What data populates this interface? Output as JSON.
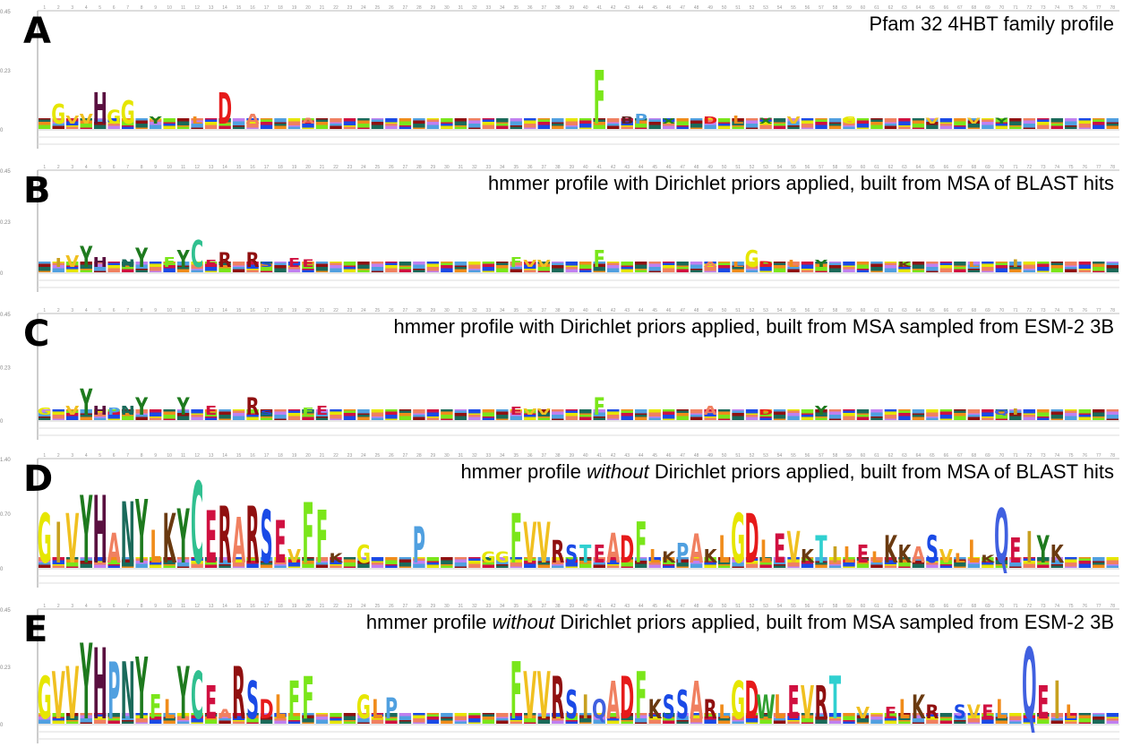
{
  "panels": [
    {
      "letter": "A",
      "title": "Pfam 32 4HBT family profile",
      "title_pre": "",
      "title_em": "",
      "title_post": "",
      "yticks": [
        "0.45",
        "0.23",
        "0"
      ],
      "logo": [
        [
          2,
          "G",
          0.2
        ],
        [
          3,
          "V",
          0.08
        ],
        [
          4,
          "V",
          0.1
        ],
        [
          5,
          "H",
          0.32
        ],
        [
          6,
          "G",
          0.14
        ],
        [
          7,
          "G",
          0.24
        ],
        [
          9,
          "Y",
          0.07
        ],
        [
          12,
          "L",
          0.07
        ],
        [
          14,
          "D",
          0.32
        ],
        [
          16,
          "A",
          0.1
        ],
        [
          20,
          "A",
          0.06
        ],
        [
          41,
          "F",
          0.55
        ],
        [
          43,
          "B",
          0.07
        ],
        [
          44,
          "P",
          0.1
        ],
        [
          46,
          "X",
          0.05
        ],
        [
          49,
          "D",
          0.07
        ],
        [
          51,
          "L",
          0.08
        ],
        [
          53,
          "X",
          0.06
        ],
        [
          55,
          "V",
          0.07
        ],
        [
          59,
          "G",
          0.07
        ],
        [
          65,
          "V",
          0.06
        ],
        [
          68,
          "V",
          0.06
        ],
        [
          70,
          "Y",
          0.06
        ]
      ]
    },
    {
      "letter": "B",
      "title": "",
      "title_pre": "",
      "title_em": "",
      "title_post": "",
      "title_full": "hmmer profile with Dirichlet priors applied, built from MSA of BLAST hits",
      "yticks": [
        "0.45",
        "0.23",
        "0"
      ],
      "logo": [
        [
          2,
          "I",
          0.1
        ],
        [
          3,
          "V",
          0.14
        ],
        [
          4,
          "Y",
          0.25
        ],
        [
          5,
          "H",
          0.12
        ],
        [
          7,
          "N",
          0.09
        ],
        [
          8,
          "Y",
          0.23
        ],
        [
          10,
          "F",
          0.12
        ],
        [
          11,
          "Y",
          0.2
        ],
        [
          12,
          "C",
          0.32
        ],
        [
          13,
          "E",
          0.08
        ],
        [
          14,
          "R",
          0.17
        ],
        [
          16,
          "R",
          0.17
        ],
        [
          17,
          "S",
          0.06
        ],
        [
          19,
          "E",
          0.1
        ],
        [
          20,
          "E",
          0.09
        ],
        [
          35,
          "F",
          0.12
        ],
        [
          36,
          "V",
          0.08
        ],
        [
          37,
          "V",
          0.08
        ],
        [
          41,
          "F",
          0.2
        ],
        [
          49,
          "A",
          0.06
        ],
        [
          51,
          "L",
          0.06
        ],
        [
          52,
          "G",
          0.2
        ],
        [
          53,
          "D",
          0.07
        ],
        [
          55,
          "L",
          0.08
        ],
        [
          57,
          "Y",
          0.08
        ],
        [
          63,
          "K",
          0.06
        ],
        [
          68,
          "L",
          0.06
        ],
        [
          71,
          "I",
          0.09
        ]
      ]
    },
    {
      "letter": "C",
      "title_full": "hmmer profile with Dirichlet priors applied, built from MSA sampled from ESM-2 3B",
      "yticks": [
        "0.45",
        "0.23",
        "0"
      ],
      "logo": [
        [
          1,
          "G",
          0.08
        ],
        [
          3,
          "V",
          0.1
        ],
        [
          4,
          "Y",
          0.3
        ],
        [
          5,
          "H",
          0.1
        ],
        [
          6,
          "P",
          0.08
        ],
        [
          7,
          "N",
          0.1
        ],
        [
          8,
          "Y",
          0.2
        ],
        [
          11,
          "Y",
          0.2
        ],
        [
          13,
          "E",
          0.1
        ],
        [
          16,
          "R",
          0.2
        ],
        [
          17,
          "S",
          0.05
        ],
        [
          20,
          "F",
          0.08
        ],
        [
          21,
          "E",
          0.1
        ],
        [
          35,
          "E",
          0.09
        ],
        [
          36,
          "V",
          0.07
        ],
        [
          37,
          "V",
          0.07
        ],
        [
          41,
          "F",
          0.2
        ],
        [
          49,
          "A",
          0.1
        ],
        [
          53,
          "D",
          0.06
        ],
        [
          57,
          "Y",
          0.1
        ],
        [
          70,
          "Q",
          0.06
        ],
        [
          71,
          "I",
          0.07
        ]
      ]
    },
    {
      "letter": "D",
      "title_pre": "hmmer profile ",
      "title_em": "without",
      "title_post": " Dirichlet priors applied, built from MSA of BLAST hits",
      "yticks": [
        "1.40",
        "0.70",
        "0"
      ],
      "logo": [
        [
          1,
          "G",
          0.55
        ],
        [
          2,
          "I",
          0.45
        ],
        [
          3,
          "V",
          0.55
        ],
        [
          4,
          "Y",
          0.75
        ],
        [
          5,
          "H",
          0.75
        ],
        [
          6,
          "A",
          0.33
        ],
        [
          7,
          "N",
          0.68
        ],
        [
          8,
          "Y",
          0.7
        ],
        [
          9,
          "L",
          0.36
        ],
        [
          10,
          "K",
          0.55
        ],
        [
          11,
          "Y",
          0.6
        ],
        [
          12,
          "C",
          0.9
        ],
        [
          13,
          "E",
          0.58
        ],
        [
          14,
          "R",
          0.63
        ],
        [
          15,
          "A",
          0.5
        ],
        [
          16,
          "R",
          0.63
        ],
        [
          17,
          "S",
          0.58
        ],
        [
          18,
          "E",
          0.47
        ],
        [
          19,
          "V",
          0.15
        ],
        [
          20,
          "F",
          0.67
        ],
        [
          21,
          "F",
          0.59
        ],
        [
          22,
          "K",
          0.1
        ],
        [
          24,
          "G",
          0.2
        ],
        [
          28,
          "P",
          0.4
        ],
        [
          33,
          "G",
          0.12
        ],
        [
          34,
          "G",
          0.12
        ],
        [
          35,
          "F",
          0.55
        ],
        [
          36,
          "V",
          0.45
        ],
        [
          37,
          "V",
          0.45
        ],
        [
          38,
          "R",
          0.25
        ],
        [
          39,
          "S",
          0.2
        ],
        [
          40,
          "T",
          0.2
        ],
        [
          41,
          "E",
          0.2
        ],
        [
          42,
          "A",
          0.33
        ],
        [
          43,
          "D",
          0.3
        ],
        [
          44,
          "F",
          0.45
        ],
        [
          45,
          "L",
          0.15
        ],
        [
          46,
          "K",
          0.12
        ],
        [
          47,
          "P",
          0.22
        ],
        [
          48,
          "A",
          0.32
        ],
        [
          49,
          "K",
          0.15
        ],
        [
          50,
          "L",
          0.3
        ],
        [
          51,
          "G",
          0.55
        ],
        [
          52,
          "D",
          0.55
        ],
        [
          53,
          "L",
          0.25
        ],
        [
          54,
          "E",
          0.32
        ],
        [
          55,
          "V",
          0.35
        ],
        [
          56,
          "K",
          0.15
        ],
        [
          57,
          "T",
          0.3
        ],
        [
          58,
          "I",
          0.18
        ],
        [
          59,
          "L",
          0.18
        ],
        [
          60,
          "E",
          0.2
        ],
        [
          61,
          "L",
          0.12
        ],
        [
          62,
          "K",
          0.3
        ],
        [
          63,
          "K",
          0.2
        ],
        [
          64,
          "A",
          0.18
        ],
        [
          65,
          "S",
          0.3
        ],
        [
          66,
          "V",
          0.15
        ],
        [
          67,
          "L",
          0.1
        ],
        [
          68,
          "L",
          0.25
        ],
        [
          69,
          "K",
          0.08
        ],
        [
          70,
          "Q",
          0.6
        ],
        [
          71,
          "E",
          0.28
        ],
        [
          72,
          "I",
          0.35
        ],
        [
          73,
          "Y",
          0.3
        ],
        [
          74,
          "K",
          0.2
        ]
      ]
    },
    {
      "letter": "E",
      "title_pre": "hmmer profile ",
      "title_em": "without",
      "title_post": " Dirichlet priors applied, built from MSA sampled from ESM-2 3B",
      "yticks": [
        "0.45",
        "0.23",
        "0"
      ],
      "logo": [
        [
          1,
          "G",
          0.45
        ],
        [
          2,
          "V",
          0.5
        ],
        [
          3,
          "V",
          0.55
        ],
        [
          4,
          "Y",
          0.8
        ],
        [
          5,
          "H",
          0.75
        ],
        [
          6,
          "P",
          0.6
        ],
        [
          7,
          "N",
          0.6
        ],
        [
          8,
          "Y",
          0.65
        ],
        [
          9,
          "F",
          0.25
        ],
        [
          10,
          "L",
          0.2
        ],
        [
          11,
          "Y",
          0.55
        ],
        [
          12,
          "C",
          0.5
        ],
        [
          13,
          "E",
          0.35
        ],
        [
          14,
          "A",
          0.1
        ],
        [
          15,
          "R",
          0.55
        ],
        [
          16,
          "S",
          0.4
        ],
        [
          17,
          "D",
          0.2
        ],
        [
          18,
          "L",
          0.25
        ],
        [
          19,
          "F",
          0.4
        ],
        [
          20,
          "F",
          0.45
        ],
        [
          24,
          "G",
          0.25
        ],
        [
          25,
          "L",
          0.2
        ],
        [
          26,
          "P",
          0.22
        ],
        [
          35,
          "F",
          0.6
        ],
        [
          36,
          "V",
          0.5
        ],
        [
          37,
          "V",
          0.5
        ],
        [
          38,
          "R",
          0.45
        ],
        [
          39,
          "S",
          0.3
        ],
        [
          40,
          "I",
          0.25
        ],
        [
          41,
          "Q",
          0.2
        ],
        [
          42,
          "A",
          0.4
        ],
        [
          43,
          "D",
          0.45
        ],
        [
          44,
          "F",
          0.5
        ],
        [
          45,
          "K",
          0.2
        ],
        [
          46,
          "S",
          0.25
        ],
        [
          47,
          "S",
          0.3
        ],
        [
          48,
          "A",
          0.4
        ],
        [
          49,
          "R",
          0.2
        ],
        [
          50,
          "L",
          0.15
        ],
        [
          51,
          "G",
          0.4
        ],
        [
          52,
          "D",
          0.4
        ],
        [
          53,
          "W",
          0.25
        ],
        [
          54,
          "L",
          0.25
        ],
        [
          55,
          "E",
          0.35
        ],
        [
          56,
          "V",
          0.35
        ],
        [
          57,
          "R",
          0.35
        ],
        [
          58,
          "T",
          0.45
        ],
        [
          60,
          "V",
          0.12
        ],
        [
          62,
          "E",
          0.12
        ],
        [
          63,
          "L",
          0.2
        ],
        [
          64,
          "K",
          0.25
        ],
        [
          65,
          "R",
          0.15
        ],
        [
          67,
          "S",
          0.15
        ],
        [
          68,
          "V",
          0.15
        ],
        [
          69,
          "E",
          0.15
        ],
        [
          70,
          "L",
          0.2
        ],
        [
          72,
          "Q",
          0.75
        ],
        [
          73,
          "E",
          0.35
        ],
        [
          74,
          "I",
          0.4
        ],
        [
          75,
          "L",
          0.15
        ]
      ]
    }
  ],
  "aa_colors": {
    "G": "#e6e600",
    "I": "#c8a020",
    "V": "#f0c020",
    "Y": "#1e7a1e",
    "H": "#5a1040",
    "N": "#1a6a5a",
    "L": "#f08c1a",
    "K": "#6a3a10",
    "F": "#7ae61a",
    "C": "#30c090",
    "E": "#d01040",
    "R": "#901010",
    "A": "#f08060",
    "S": "#1a4ae6",
    "P": "#50a0e0",
    "D": "#e61a1a",
    "T": "#30d0d0",
    "Q": "#4060e0",
    "W": "#30a030",
    "M": "#c080f0",
    "X": "#208020",
    "B": "#602020"
  }
}
